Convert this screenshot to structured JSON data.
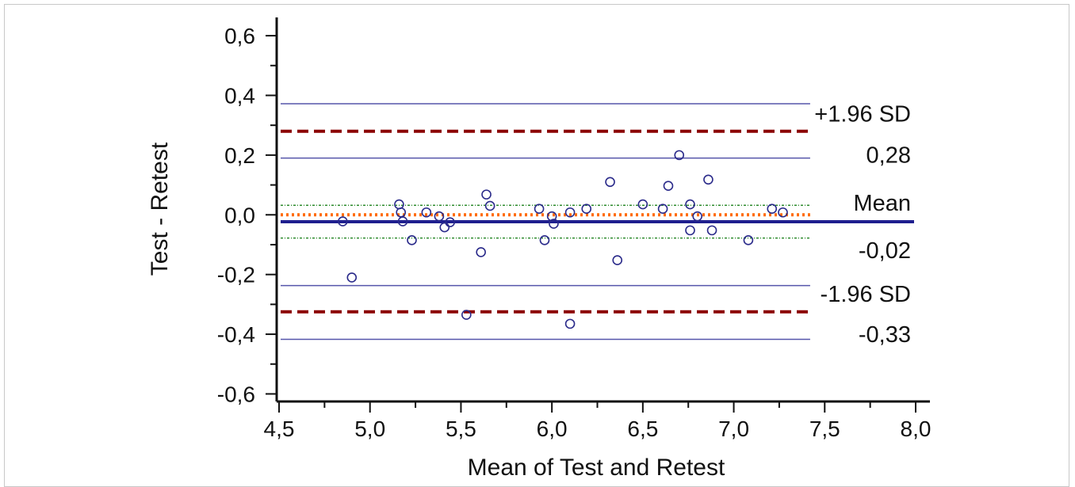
{
  "chart_data": {
    "type": "scatter",
    "xlabel": "Mean of Test and Retest",
    "ylabel": "Test - Retest",
    "xlim": [
      4.5,
      8.0
    ],
    "ylim": [
      -0.62,
      0.64
    ],
    "x_ticks": [
      {
        "value": 4.5,
        "label": "4,5"
      },
      {
        "value": 5.0,
        "label": "5,0"
      },
      {
        "value": 5.5,
        "label": "5,5"
      },
      {
        "value": 6.0,
        "label": "6,0"
      },
      {
        "value": 6.5,
        "label": "6,5"
      },
      {
        "value": 7.0,
        "label": "7,0"
      },
      {
        "value": 7.5,
        "label": "7,5"
      },
      {
        "value": 8.0,
        "label": "8,0"
      }
    ],
    "y_ticks": [
      {
        "value": 0.6,
        "label": "0,6"
      },
      {
        "value": 0.4,
        "label": "0,4"
      },
      {
        "value": 0.2,
        "label": "0,2"
      },
      {
        "value": 0.0,
        "label": "0,0"
      },
      {
        "value": -0.2,
        "label": "-0,2"
      },
      {
        "value": -0.4,
        "label": "-0,4"
      },
      {
        "value": -0.6,
        "label": "-0,6"
      }
    ],
    "y_minor_ticks": [
      0.5,
      0.3,
      0.1,
      -0.1,
      -0.3,
      -0.5
    ],
    "grid": false,
    "reference_lines": {
      "x_range": [
        4.5,
        7.42
      ],
      "zero_line": {
        "y": 0.0,
        "color": "#ff6a00"
      },
      "mean": {
        "y": -0.023,
        "color": "#1f1f8f",
        "label": "Mean",
        "value_label": "-0,02"
      },
      "upper_loa": {
        "y": 0.28,
        "color": "#8b0000",
        "label": "+1.96 SD",
        "value_label": "0,28"
      },
      "lower_loa": {
        "y": -0.325,
        "color": "#8b0000",
        "label": "-1.96 SD",
        "value_label": "-0,33"
      },
      "mean_ci": [
        0.032,
        -0.078
      ],
      "mean_ci_color": "#2e8b2e",
      "upper_loa_ci": [
        0.372,
        0.19
      ],
      "lower_loa_ci": [
        -0.237,
        -0.417
      ],
      "loa_ci_color": "#5555aa"
    },
    "point_color": "#2a2a8a",
    "points": [
      {
        "x": 4.85,
        "y": -0.022
      },
      {
        "x": 4.9,
        "y": -0.21
      },
      {
        "x": 5.16,
        "y": 0.035
      },
      {
        "x": 5.17,
        "y": 0.008
      },
      {
        "x": 5.18,
        "y": -0.022
      },
      {
        "x": 5.23,
        "y": -0.085
      },
      {
        "x": 5.31,
        "y": 0.008
      },
      {
        "x": 5.38,
        "y": -0.005
      },
      {
        "x": 5.41,
        "y": -0.042
      },
      {
        "x": 5.44,
        "y": -0.025
      },
      {
        "x": 5.53,
        "y": -0.335
      },
      {
        "x": 5.61,
        "y": -0.125
      },
      {
        "x": 5.64,
        "y": 0.068
      },
      {
        "x": 5.66,
        "y": 0.03
      },
      {
        "x": 5.93,
        "y": 0.02
      },
      {
        "x": 5.96,
        "y": -0.085
      },
      {
        "x": 6.0,
        "y": -0.005
      },
      {
        "x": 6.01,
        "y": -0.03
      },
      {
        "x": 6.1,
        "y": 0.008
      },
      {
        "x": 6.1,
        "y": -0.365
      },
      {
        "x": 6.19,
        "y": 0.02
      },
      {
        "x": 6.32,
        "y": 0.11
      },
      {
        "x": 6.36,
        "y": -0.152
      },
      {
        "x": 6.5,
        "y": 0.035
      },
      {
        "x": 6.61,
        "y": 0.02
      },
      {
        "x": 6.64,
        "y": 0.097
      },
      {
        "x": 6.7,
        "y": 0.2
      },
      {
        "x": 6.76,
        "y": 0.035
      },
      {
        "x": 6.76,
        "y": -0.052
      },
      {
        "x": 6.8,
        "y": -0.005
      },
      {
        "x": 6.86,
        "y": 0.118
      },
      {
        "x": 6.88,
        "y": -0.052
      },
      {
        "x": 7.08,
        "y": -0.085
      },
      {
        "x": 7.21,
        "y": 0.02
      },
      {
        "x": 7.27,
        "y": 0.008
      }
    ]
  }
}
